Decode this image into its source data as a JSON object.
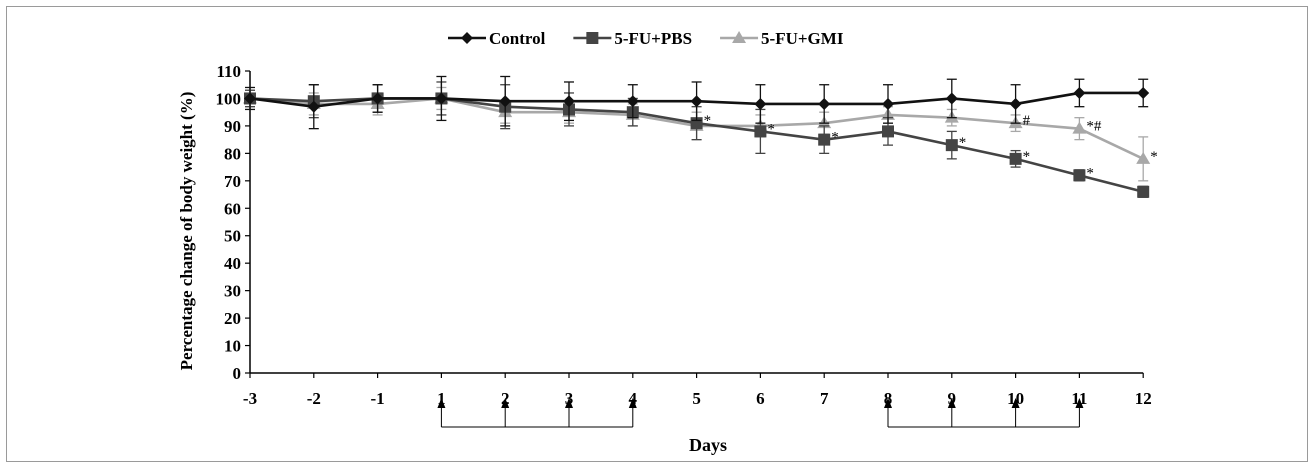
{
  "chart_data": {
    "type": "line",
    "title": "",
    "xlabel": "Days",
    "ylabel": "Percentage change of body weight (%)",
    "x": [
      -3,
      -2,
      -1,
      1,
      2,
      3,
      4,
      5,
      6,
      7,
      8,
      9,
      10,
      11,
      12
    ],
    "ylim": [
      0,
      110
    ],
    "yticks": [
      0,
      10,
      20,
      30,
      40,
      50,
      60,
      70,
      80,
      90,
      100,
      110
    ],
    "grid": false,
    "legend_position": "top",
    "series": [
      {
        "name": "Control",
        "marker": "diamond",
        "color": "#111111",
        "values": [
          100,
          97,
          100,
          100,
          99,
          99,
          99,
          99,
          98,
          98,
          98,
          100,
          98,
          102,
          102
        ],
        "errors": [
          4,
          8,
          5,
          8,
          9,
          7,
          6,
          7,
          7,
          7,
          7,
          7,
          7,
          5,
          5
        ],
        "annotations": [
          "",
          "",
          "",
          "",
          "",
          "",
          "",
          "",
          "",
          "",
          "",
          "",
          "",
          "",
          ""
        ]
      },
      {
        "name": "5-FU+PBS",
        "marker": "square",
        "color": "#444444",
        "values": [
          100,
          99,
          100,
          100,
          97,
          96,
          95,
          91,
          88,
          85,
          88,
          83,
          78,
          72,
          66
        ],
        "errors": [
          3,
          6,
          5,
          6,
          8,
          6,
          5,
          6,
          8,
          5,
          5,
          5,
          3,
          2,
          2
        ],
        "annotations": [
          "",
          "",
          "",
          "",
          "",
          "",
          "",
          "*",
          "*",
          "*",
          "",
          "*",
          "*",
          "*",
          ""
        ]
      },
      {
        "name": "5-FU+GMI",
        "marker": "triangle",
        "color": "#a8a8a8",
        "values": [
          100,
          98,
          98,
          100,
          95,
          95,
          94,
          90,
          90,
          91,
          94,
          93,
          91,
          89,
          78
        ],
        "errors": [
          3,
          4,
          4,
          4,
          4,
          4,
          4,
          5,
          4,
          4,
          3,
          3,
          3,
          4,
          8
        ],
        "annotations": [
          "",
          "",
          "",
          "",
          "",
          "",
          "",
          "",
          "",
          "",
          "",
          "",
          "#",
          "*#",
          "*"
        ]
      }
    ],
    "treatment_arrows": {
      "groups": [
        [
          1,
          2,
          3,
          4
        ],
        [
          8,
          9,
          10,
          11
        ]
      ]
    }
  }
}
